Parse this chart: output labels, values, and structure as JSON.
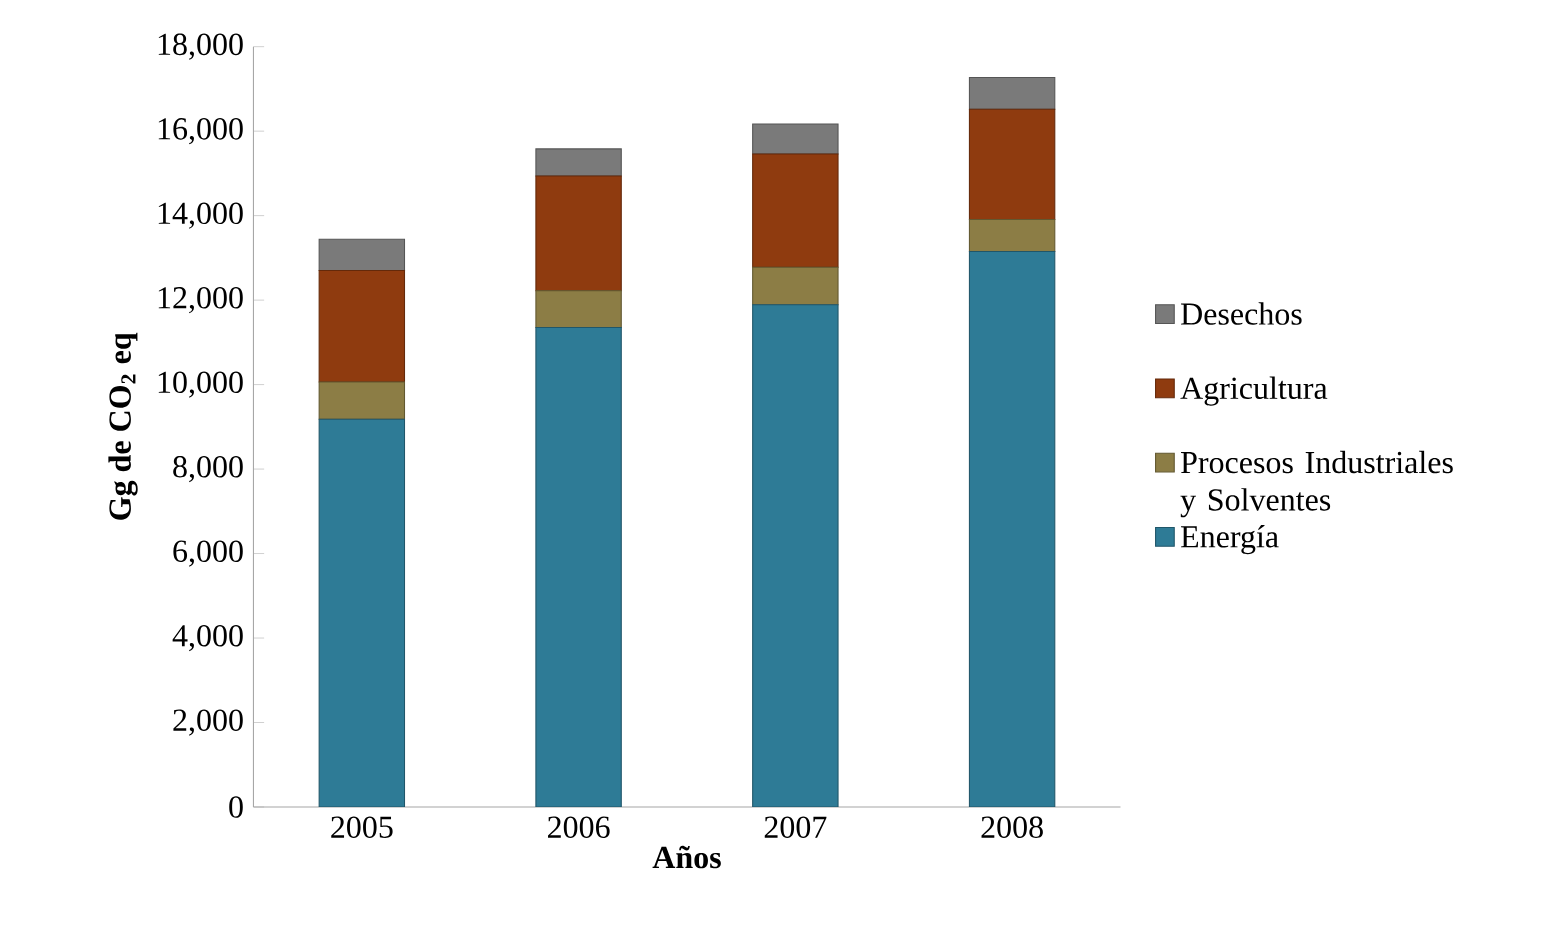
{
  "chart_data": {
    "type": "bar",
    "stacked": true,
    "xlabel": "Años",
    "ylabel": "Gg de CO$_{2}$ eq",
    "categories": [
      "2005",
      "2006",
      "2007",
      "2008"
    ],
    "series": [
      {
        "name": "Energía",
        "color": "#2e7b96",
        "values": [
          9180,
          11350,
          11890,
          13150
        ]
      },
      {
        "name": "Procesos Industriales y Solventes",
        "color": "#8c7d45",
        "values": [
          880,
          870,
          890,
          760
        ]
      },
      {
        "name": "Agricultura",
        "color": "#8f3b0f",
        "values": [
          2640,
          2720,
          2680,
          2610
        ]
      },
      {
        "name": "Desechos",
        "color": "#7a7a7a",
        "values": [
          740,
          640,
          710,
          750
        ]
      }
    ],
    "ylim": [
      0,
      18000
    ],
    "yticks": [
      {
        "value": 0,
        "label": "0"
      },
      {
        "value": 2000,
        "label": "2,000"
      },
      {
        "value": 4000,
        "label": "4,000"
      },
      {
        "value": 6000,
        "label": "6,000"
      },
      {
        "value": 8000,
        "label": "8,000"
      },
      {
        "value": 10000,
        "label": "10,000"
      },
      {
        "value": 12000,
        "label": "12,000"
      },
      {
        "value": 14000,
        "label": "14,000"
      },
      {
        "value": 16000,
        "label": "16,000"
      },
      {
        "value": 18000,
        "label": "18,000"
      }
    ],
    "legend": "right"
  }
}
